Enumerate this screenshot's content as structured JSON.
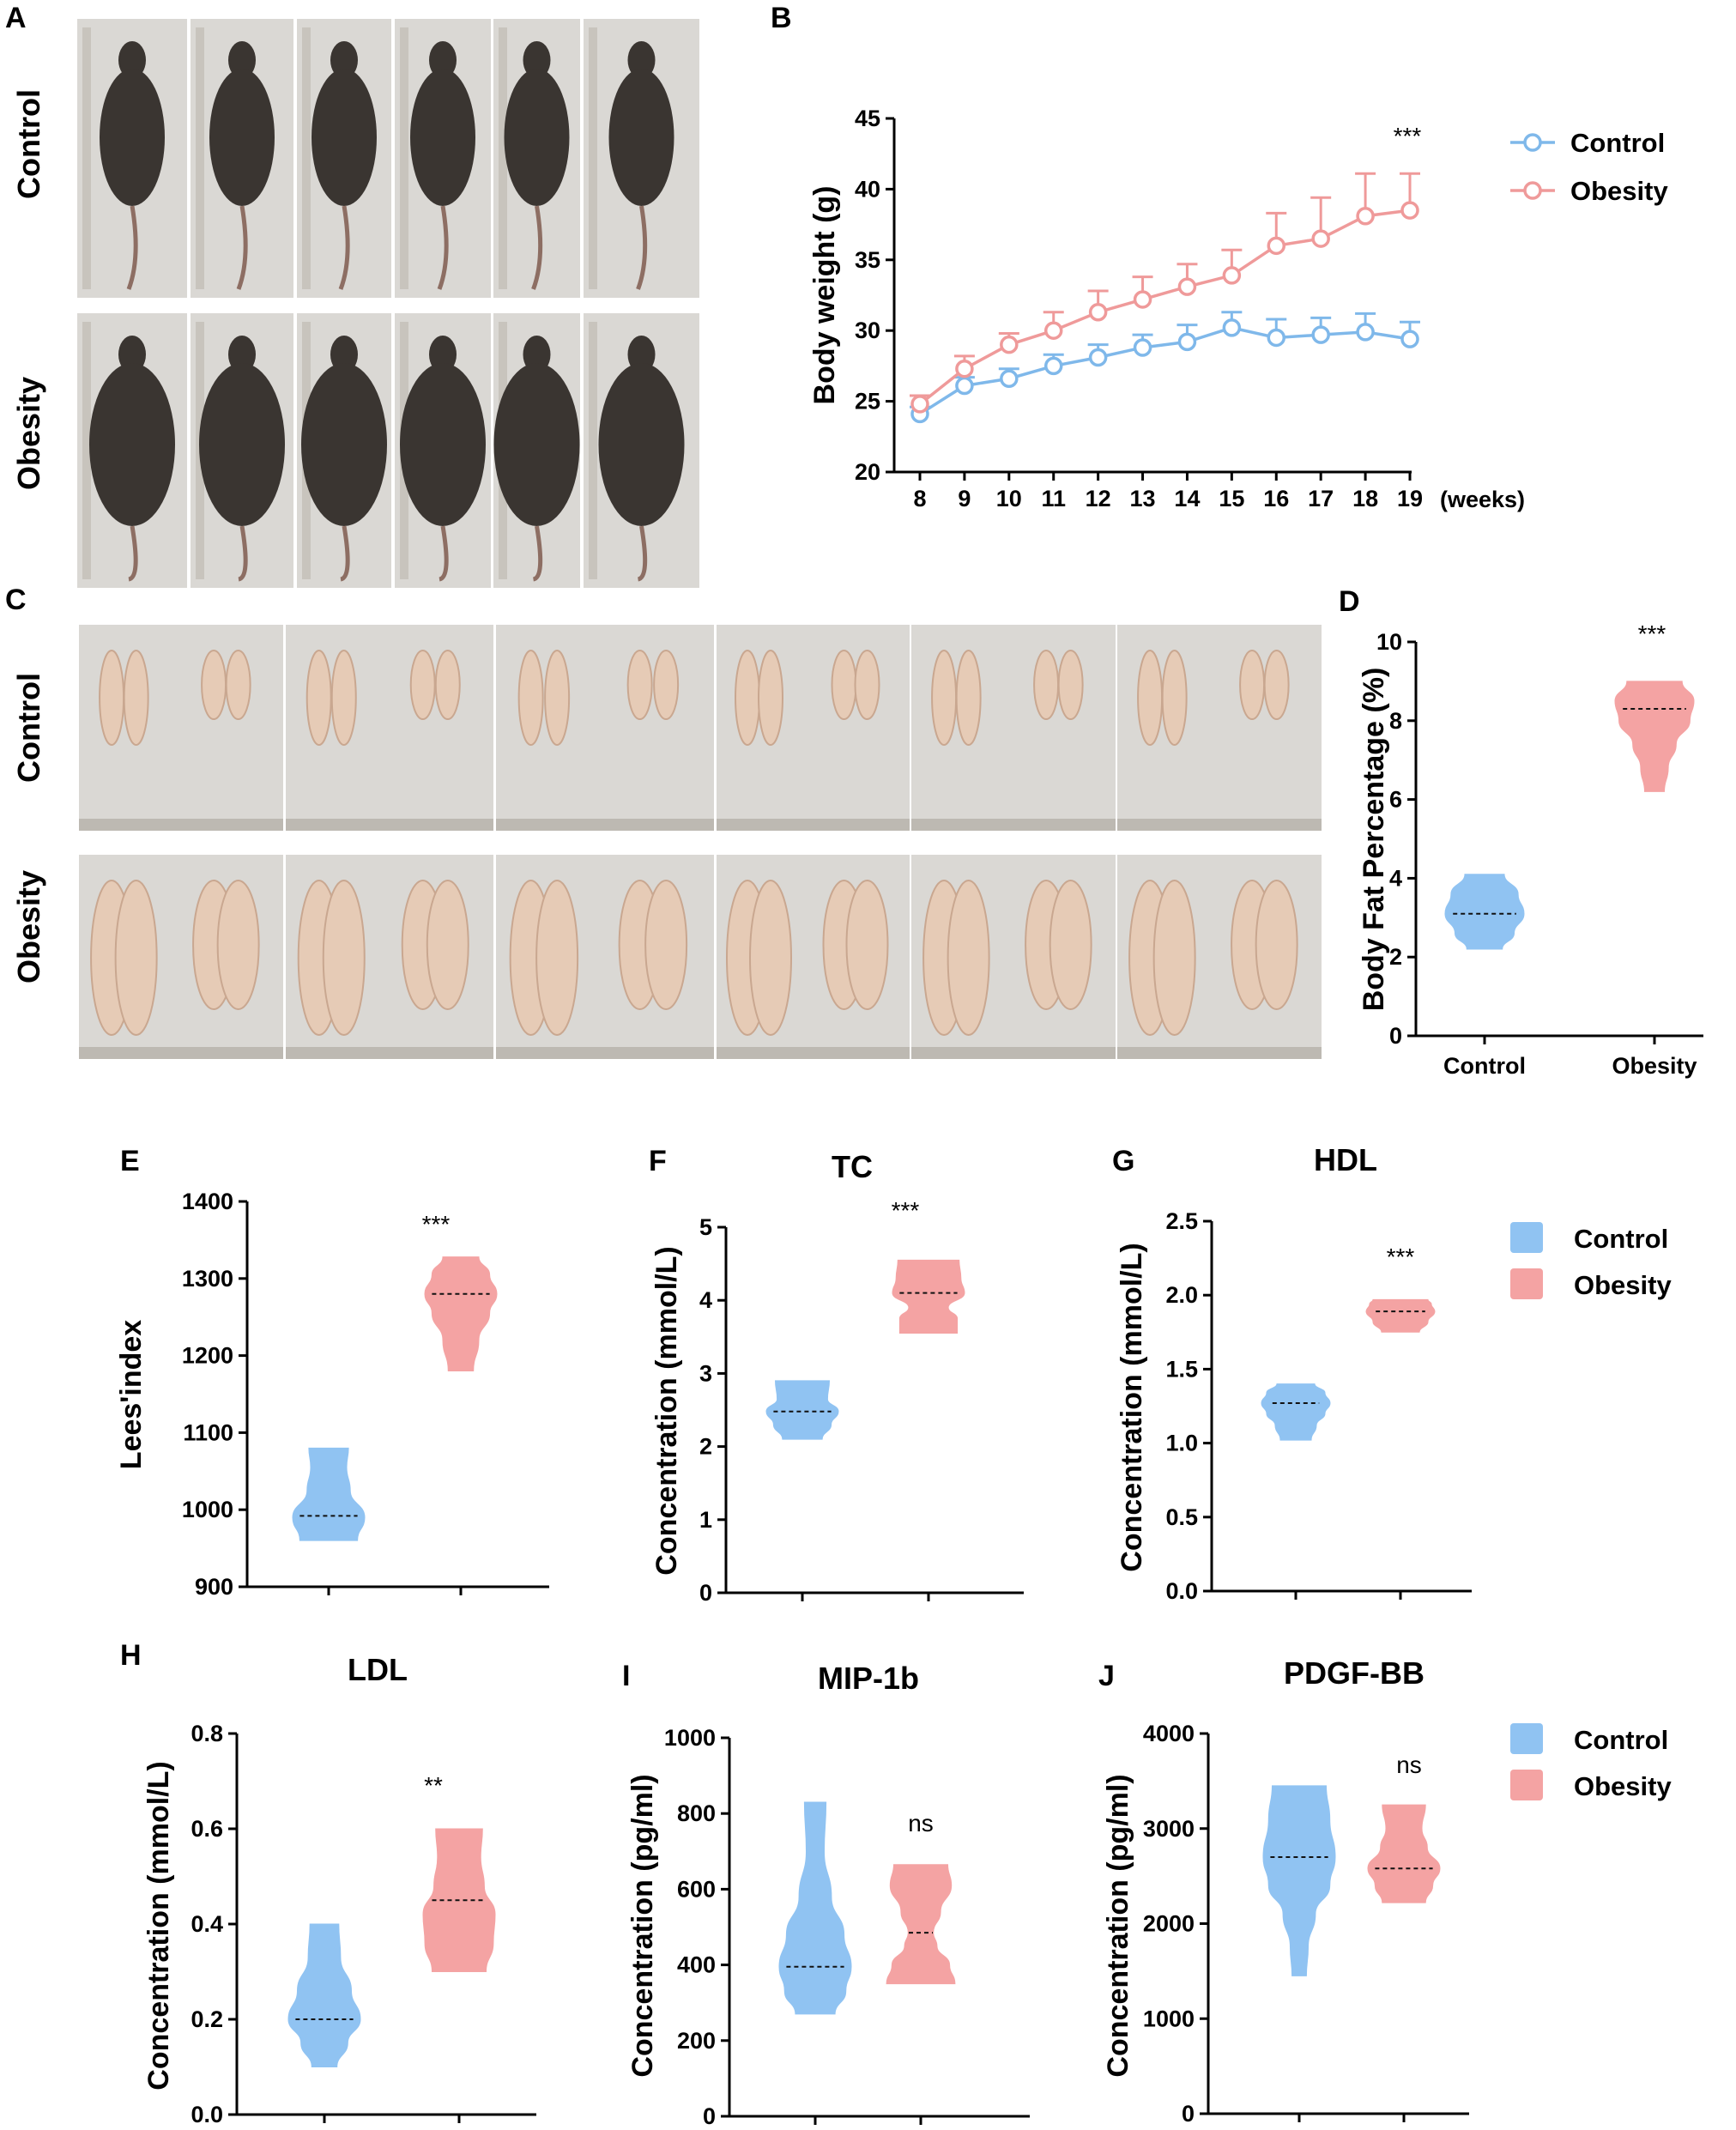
{
  "panels": {
    "A": {
      "label": "A",
      "rows": [
        "Control",
        "Obesity"
      ]
    },
    "C": {
      "label": "C",
      "rows": [
        "Control",
        "Obesity"
      ]
    }
  },
  "colors": {
    "control": "#90c3f2",
    "obesity": "#f4a3a3",
    "control_line": "#7fb8ea",
    "obesity_line": "#ef9a9a",
    "photo_mouse": "#3a3531",
    "photo_bg": "#dad8d4",
    "photo_fat": "#e6cbb6"
  },
  "chart_data": [
    {
      "id": "B",
      "panel_label": "B",
      "type": "line",
      "title": "",
      "xlabel": "(weeks)",
      "ylabel": "Body weight (g)",
      "x": [
        8,
        9,
        10,
        11,
        12,
        13,
        14,
        15,
        16,
        17,
        18,
        19
      ],
      "ylim": [
        20,
        45
      ],
      "yticks": [
        20,
        25,
        30,
        35,
        40,
        45
      ],
      "series": [
        {
          "name": "Control",
          "values": [
            24.1,
            26.1,
            26.6,
            27.5,
            28.1,
            28.8,
            29.2,
            30.2,
            29.5,
            29.7,
            29.9,
            29.4
          ],
          "err": [
            0.5,
            0.6,
            0.7,
            0.8,
            0.9,
            0.9,
            1.2,
            1.1,
            1.3,
            1.2,
            1.3,
            1.2
          ]
        },
        {
          "name": "Obesity",
          "values": [
            24.8,
            27.3,
            29.0,
            30.0,
            31.3,
            32.2,
            33.1,
            33.9,
            36.0,
            36.5,
            38.1,
            38.5
          ],
          "err": [
            0.6,
            0.9,
            0.8,
            1.3,
            1.5,
            1.6,
            1.6,
            1.8,
            2.3,
            2.9,
            3.0,
            2.6
          ]
        }
      ],
      "significance": "***",
      "legend": [
        "Control",
        "Obesity"
      ]
    },
    {
      "id": "D",
      "panel_label": "D",
      "type": "violin",
      "title": "",
      "ylabel": "Body Fat Percentage (%)",
      "ylim": [
        0,
        10
      ],
      "yticks": [
        0,
        2,
        4,
        6,
        8,
        10
      ],
      "yticklabels": [
        "0",
        "2",
        "4",
        "6",
        "8",
        "10"
      ],
      "categories": [
        "Control",
        "Obesity"
      ],
      "series": [
        {
          "name": "Control",
          "min": 2.2,
          "max": 4.1,
          "median": 3.1,
          "shape": [
            [
              2.2,
              0.45
            ],
            [
              2.6,
              0.75
            ],
            [
              3.1,
              1.0
            ],
            [
              3.6,
              0.85
            ],
            [
              4.1,
              0.5
            ]
          ]
        },
        {
          "name": "Obesity",
          "min": 6.2,
          "max": 9.0,
          "median": 8.3,
          "shape": [
            [
              6.2,
              0.25
            ],
            [
              6.8,
              0.35
            ],
            [
              7.4,
              0.55
            ],
            [
              8.0,
              0.9
            ],
            [
              8.5,
              1.0
            ],
            [
              9.0,
              0.7
            ]
          ]
        }
      ],
      "significance": "***",
      "show_xlabels": true
    },
    {
      "id": "E",
      "panel_label": "E",
      "type": "violin",
      "title": "",
      "ylabel": "Lees'index",
      "ylim": [
        900,
        1400
      ],
      "yticks": [
        900,
        1000,
        1100,
        1200,
        1300,
        1400
      ],
      "yticklabels": [
        "900",
        "1000",
        "1100",
        "1200",
        "1300",
        "1400"
      ],
      "categories": [
        "Control",
        "Obesity"
      ],
      "series": [
        {
          "name": "Control",
          "min": 960,
          "max": 1080,
          "median": 992,
          "shape": [
            [
              960,
              0.8
            ],
            [
              990,
              1.0
            ],
            [
              1025,
              0.6
            ],
            [
              1055,
              0.5
            ],
            [
              1080,
              0.55
            ]
          ]
        },
        {
          "name": "Obesity",
          "min": 1180,
          "max": 1328,
          "median": 1280,
          "shape": [
            [
              1180,
              0.35
            ],
            [
              1220,
              0.5
            ],
            [
              1255,
              0.8
            ],
            [
              1280,
              1.0
            ],
            [
              1305,
              0.8
            ],
            [
              1328,
              0.5
            ]
          ]
        }
      ],
      "significance": "***",
      "show_xlabels": false
    },
    {
      "id": "F",
      "panel_label": "F",
      "type": "violin",
      "title": "TC",
      "ylabel": "Concentration (mmol/L)",
      "ylim": [
        0,
        5
      ],
      "yticks": [
        0,
        1,
        2,
        3,
        4,
        5
      ],
      "yticklabels": [
        "0",
        "1",
        "2",
        "3",
        "4",
        "5"
      ],
      "categories": [
        "Control",
        "Obesity"
      ],
      "series": [
        {
          "name": "Control",
          "min": 2.1,
          "max": 2.9,
          "median": 2.48,
          "shape": [
            [
              2.1,
              0.55
            ],
            [
              2.3,
              0.8
            ],
            [
              2.48,
              1.0
            ],
            [
              2.65,
              0.7
            ],
            [
              2.9,
              0.75
            ]
          ]
        },
        {
          "name": "Obesity",
          "min": 3.55,
          "max": 4.55,
          "median": 4.1,
          "shape": [
            [
              3.55,
              0.8
            ],
            [
              3.75,
              0.8
            ],
            [
              3.9,
              0.55
            ],
            [
              4.1,
              1.0
            ],
            [
              4.3,
              0.9
            ],
            [
              4.55,
              0.85
            ]
          ]
        }
      ],
      "significance": "***",
      "show_xlabels": false
    },
    {
      "id": "G",
      "panel_label": "G",
      "type": "violin",
      "title": "HDL",
      "ylabel": "Concentration (mmol/L)",
      "ylim": [
        0,
        2.5
      ],
      "yticks": [
        0,
        0.5,
        1.0,
        1.5,
        2.0,
        2.5
      ],
      "yticklabels": [
        "0.0",
        "0.5",
        "1.0",
        "1.5",
        "2.0",
        "2.5"
      ],
      "categories": [
        "Control",
        "Obesity"
      ],
      "series": [
        {
          "name": "Control",
          "min": 1.02,
          "max": 1.4,
          "median": 1.27,
          "shape": [
            [
              1.02,
              0.45
            ],
            [
              1.12,
              0.6
            ],
            [
              1.2,
              0.85
            ],
            [
              1.27,
              1.0
            ],
            [
              1.34,
              0.85
            ],
            [
              1.4,
              0.55
            ]
          ]
        },
        {
          "name": "Obesity",
          "min": 1.75,
          "max": 1.97,
          "median": 1.89,
          "shape": [
            [
              1.75,
              0.55
            ],
            [
              1.82,
              0.8
            ],
            [
              1.89,
              1.0
            ],
            [
              1.94,
              0.9
            ],
            [
              1.97,
              0.8
            ]
          ]
        }
      ],
      "significance": "***",
      "show_xlabels": false
    },
    {
      "id": "H",
      "panel_label": "H",
      "type": "violin",
      "title": "LDL",
      "ylabel": "Concentration (mmol/L)",
      "ylim": [
        0,
        0.8
      ],
      "yticks": [
        0,
        0.2,
        0.4,
        0.6,
        0.8
      ],
      "yticklabels": [
        "0.0",
        "0.2",
        "0.4",
        "0.6",
        "0.8"
      ],
      "categories": [
        "Control",
        "Obesity"
      ],
      "series": [
        {
          "name": "Control",
          "min": 0.1,
          "max": 0.4,
          "median": 0.2,
          "shape": [
            [
              0.1,
              0.35
            ],
            [
              0.15,
              0.65
            ],
            [
              0.2,
              1.0
            ],
            [
              0.26,
              0.75
            ],
            [
              0.33,
              0.45
            ],
            [
              0.4,
              0.4
            ]
          ]
        },
        {
          "name": "Obesity",
          "min": 0.3,
          "max": 0.6,
          "median": 0.45,
          "shape": [
            [
              0.3,
              0.75
            ],
            [
              0.36,
              0.95
            ],
            [
              0.42,
              1.0
            ],
            [
              0.48,
              0.7
            ],
            [
              0.54,
              0.6
            ],
            [
              0.6,
              0.65
            ]
          ]
        }
      ],
      "significance": "**",
      "show_xlabels": false
    },
    {
      "id": "I",
      "panel_label": "I",
      "type": "violin",
      "title": "MIP-1b",
      "ylabel": "Concentration (pg/ml)",
      "ylim": [
        0,
        1000
      ],
      "yticks": [
        0,
        200,
        400,
        600,
        800,
        1000
      ],
      "yticklabels": [
        "0",
        "200",
        "400",
        "600",
        "800",
        "1000"
      ],
      "categories": [
        "Control",
        "Obesity"
      ],
      "series": [
        {
          "name": "Control",
          "min": 270,
          "max": 830,
          "median": 395,
          "shape": [
            [
              270,
              0.55
            ],
            [
              330,
              0.85
            ],
            [
              395,
              1.0
            ],
            [
              480,
              0.8
            ],
            [
              580,
              0.45
            ],
            [
              700,
              0.25
            ],
            [
              830,
              0.3
            ]
          ]
        },
        {
          "name": "Obesity",
          "min": 350,
          "max": 665,
          "median": 485,
          "shape": [
            [
              350,
              0.95
            ],
            [
              400,
              0.8
            ],
            [
              450,
              0.45
            ],
            [
              485,
              0.35
            ],
            [
              540,
              0.55
            ],
            [
              610,
              0.85
            ],
            [
              665,
              0.75
            ]
          ]
        }
      ],
      "significance": "ns",
      "show_xlabels": false
    },
    {
      "id": "J",
      "panel_label": "J",
      "type": "violin",
      "title": "PDGF-BB",
      "ylabel": "Concentration (pg/ml)",
      "ylim": [
        0,
        4000
      ],
      "yticks": [
        0,
        1000,
        2000,
        3000,
        4000
      ],
      "yticklabels": [
        "0",
        "1000",
        "2000",
        "3000",
        "4000"
      ],
      "categories": [
        "Control",
        "Obesity"
      ],
      "series": [
        {
          "name": "Control",
          "min": 1450,
          "max": 3450,
          "median": 2700,
          "shape": [
            [
              1450,
              0.2
            ],
            [
              1750,
              0.25
            ],
            [
              2100,
              0.45
            ],
            [
              2400,
              0.85
            ],
            [
              2700,
              1.0
            ],
            [
              3100,
              0.85
            ],
            [
              3450,
              0.75
            ]
          ]
        },
        {
          "name": "Obesity",
          "min": 2220,
          "max": 3250,
          "median": 2580,
          "shape": [
            [
              2220,
              0.6
            ],
            [
              2400,
              0.8
            ],
            [
              2580,
              1.0
            ],
            [
              2800,
              0.65
            ],
            [
              3000,
              0.5
            ],
            [
              3250,
              0.6
            ]
          ]
        }
      ],
      "significance": "ns",
      "show_xlabels": false
    }
  ],
  "legends": [
    {
      "id": "legend-efg",
      "items": [
        "Control",
        "Obesity"
      ]
    },
    {
      "id": "legend-hij",
      "items": [
        "Control",
        "Obesity"
      ]
    }
  ]
}
